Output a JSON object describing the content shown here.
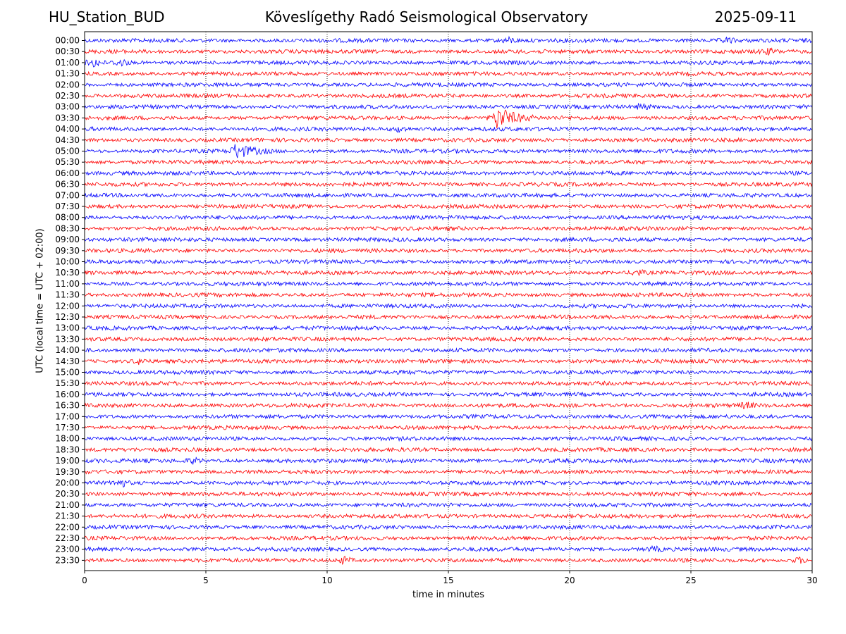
{
  "header": {
    "station": "HU_Station_BUD",
    "observatory": "Köveslígethy Radó Seismological Observatory",
    "date": "2025-09-11"
  },
  "colors": {
    "trace_a": "#0000ff",
    "trace_b": "#ff0000",
    "axis": "#000000",
    "grid": "#000000"
  },
  "chart_data": {
    "type": "line",
    "title": "Köveslígethy Radó Seismological Observatory",
    "xlabel": "time in minutes",
    "ylabel": "UTC (local time = UTC + 02:00)",
    "xlim": [
      0,
      30
    ],
    "xticks": [
      0,
      5,
      10,
      15,
      20,
      25,
      30
    ],
    "grid": "vertical dotted at x ticks",
    "rows": [
      "00:00",
      "00:30",
      "01:00",
      "01:30",
      "02:00",
      "02:30",
      "03:00",
      "03:30",
      "04:00",
      "04:30",
      "05:00",
      "05:30",
      "06:00",
      "06:30",
      "07:00",
      "07:30",
      "08:00",
      "08:30",
      "09:00",
      "09:30",
      "10:00",
      "10:30",
      "11:00",
      "11:30",
      "12:00",
      "12:30",
      "13:00",
      "13:30",
      "14:00",
      "14:30",
      "15:00",
      "15:30",
      "16:00",
      "16:30",
      "17:00",
      "17:30",
      "18:00",
      "18:30",
      "19:00",
      "19:30",
      "20:00",
      "20:30",
      "21:00",
      "21:30",
      "22:00",
      "22:30",
      "23:00",
      "23:30"
    ],
    "row_colors": "alternating blue (even rows) and red (odd rows)",
    "events": [
      {
        "row": "00:00",
        "x": 17.5,
        "amplitude": 1.2
      },
      {
        "row": "00:00",
        "x": 26.5,
        "amplitude": 1.1
      },
      {
        "row": "00:30",
        "x": 28.2,
        "amplitude": 1.0
      },
      {
        "row": "01:00",
        "x": 0.4,
        "amplitude": 1.6
      },
      {
        "row": "01:00",
        "x": 1.5,
        "amplitude": 1.3
      },
      {
        "row": "03:00",
        "x": 23.0,
        "amplitude": 1.2
      },
      {
        "row": "03:30",
        "x": 17.0,
        "amplitude": 5.0
      },
      {
        "row": "04:00",
        "x": 13.0,
        "amplitude": 1.2
      },
      {
        "row": "05:00",
        "x": 6.2,
        "amplitude": 3.2
      },
      {
        "row": "10:30",
        "x": 22.8,
        "amplitude": 1.3
      },
      {
        "row": "14:30",
        "x": 2.3,
        "amplitude": 1.2
      },
      {
        "row": "16:30",
        "x": 27.3,
        "amplitude": 1.1
      },
      {
        "row": "19:00",
        "x": 4.5,
        "amplitude": 1.1
      },
      {
        "row": "20:00",
        "x": 1.5,
        "amplitude": 1.6
      },
      {
        "row": "23:00",
        "x": 23.5,
        "amplitude": 1.0
      },
      {
        "row": "23:30",
        "x": 10.7,
        "amplitude": 1.5
      },
      {
        "row": "23:30",
        "x": 29.5,
        "amplitude": 1.2
      }
    ]
  }
}
